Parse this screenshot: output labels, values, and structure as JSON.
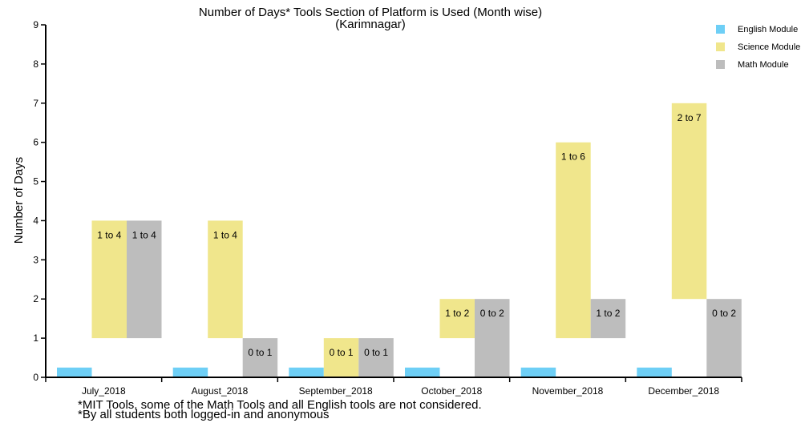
{
  "chart_data": {
    "type": "bar",
    "title": "Number of Days* Tools Section of Platform is Used (Month wise)",
    "subtitle": "(Karimnagar)",
    "ylabel": "Number of Days",
    "xlabel": "",
    "ylim": [
      0,
      9
    ],
    "yticks": [
      "0",
      "1",
      "2",
      "3",
      "4",
      "5",
      "6",
      "7",
      "8",
      "9"
    ],
    "categories": [
      "July_2018",
      "August_2018",
      "September_2018",
      "October_2018",
      "November_2018",
      "December_2018"
    ],
    "series": [
      {
        "name": "English Module",
        "color": "#6ecff6",
        "ranges": [
          [
            0,
            0.25
          ],
          [
            0,
            0.25
          ],
          [
            0,
            0.25
          ],
          [
            0,
            0.25
          ],
          [
            0,
            0.25
          ],
          [
            0,
            0.25
          ]
        ],
        "labels": [
          "",
          "",
          "",
          "",
          "",
          ""
        ]
      },
      {
        "name": "Science Module",
        "color": "#f0e68c",
        "ranges": [
          [
            1,
            4
          ],
          [
            1,
            4
          ],
          [
            0,
            1
          ],
          [
            1,
            2
          ],
          [
            1,
            6
          ],
          [
            2,
            7
          ]
        ],
        "labels": [
          "1 to 4",
          "1 to 4",
          "0 to 1",
          "1 to 2",
          "1 to 6",
          "2 to 7"
        ]
      },
      {
        "name": "Math Module",
        "color": "#bdbdbd",
        "ranges": [
          [
            1,
            4
          ],
          [
            0,
            1
          ],
          [
            0,
            1
          ],
          [
            0,
            2
          ],
          [
            1,
            2
          ],
          [
            0,
            2
          ]
        ],
        "labels": [
          "1 to 4",
          "0 to 1",
          "0 to 1",
          "0 to 2",
          "1 to 2",
          "0 to 2"
        ]
      }
    ],
    "legend_position": "top-right",
    "grid": false
  },
  "notes": [
    "*MIT Tools, some of the Math Tools and all English tools are not considered.",
    "*By all students both logged-in and anonymous"
  ]
}
